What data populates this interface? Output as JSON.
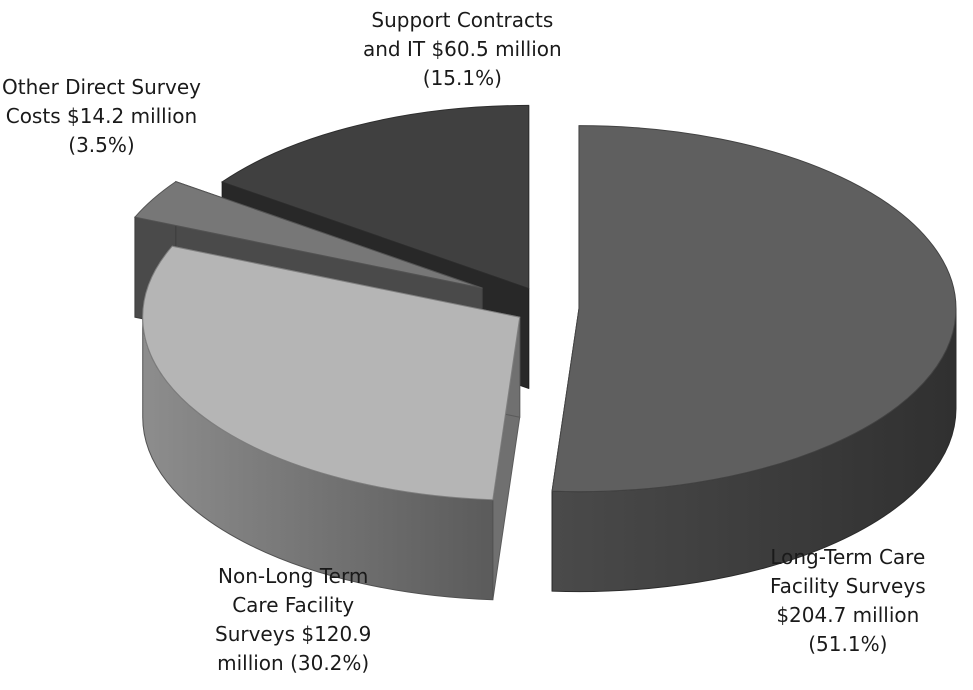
{
  "chart_data": {
    "type": "pie",
    "style": "3d-exploded",
    "unit": "$ million",
    "slices": [
      {
        "name": "Long-Term Care Facility Surveys",
        "value": 204.7,
        "percent": 51.1,
        "color": "#5f5f5f",
        "label_lines": [
          "Long-Term Care",
          "Facility Surveys",
          "$204.7 million",
          "(51.1%)"
        ]
      },
      {
        "name": "Non-Long Term Care Facility Surveys",
        "value": 120.9,
        "percent": 30.2,
        "color": "#b5b5b5",
        "label_lines": [
          "Non-Long Term",
          "Care Facility",
          "Surveys $120.9",
          "million (30.2%)"
        ]
      },
      {
        "name": "Other Direct Survey Costs",
        "value": 14.2,
        "percent": 3.5,
        "color": "#777777",
        "label_lines": [
          "Other Direct Survey",
          "Costs $14.2 million",
          "(3.5%)"
        ]
      },
      {
        "name": "Support Contracts and IT",
        "value": 60.5,
        "percent": 15.1,
        "color": "#404040",
        "label_lines": [
          "Support Contracts",
          "and IT $60.5 million",
          "(15.1%)"
        ]
      }
    ]
  }
}
